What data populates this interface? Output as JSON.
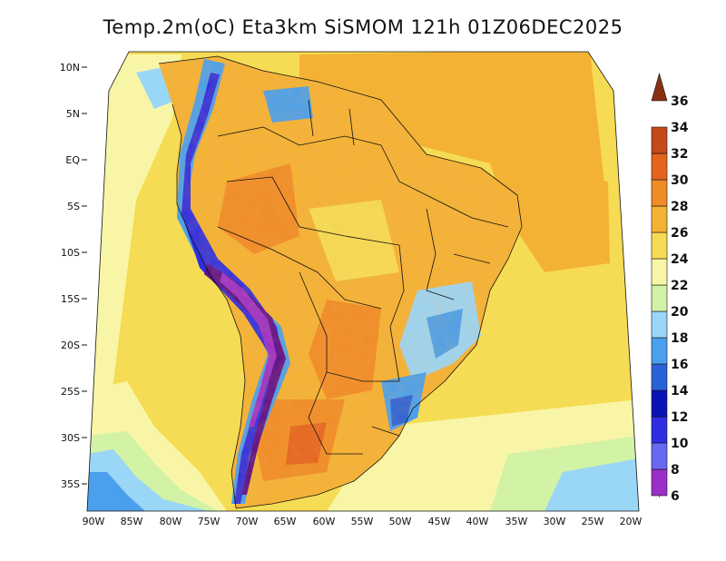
{
  "title": "Temp.2m(oC) Eta3km SiSMOM 121h 01Z06DEC2025",
  "map": {
    "variable": "2 m temperature",
    "region": "South America"
  },
  "lat_ticks": [
    "10N",
    "5N",
    "EQ",
    "5S",
    "10S",
    "15S",
    "20S",
    "25S",
    "30S",
    "35S"
  ],
  "lon_ticks": [
    "90W",
    "85W",
    "80W",
    "75W",
    "70W",
    "65W",
    "60W",
    "55W",
    "50W",
    "45W",
    "40W",
    "35W",
    "30W",
    "25W",
    "20W"
  ],
  "colorbar": {
    "labels": [
      "6",
      "8",
      "10",
      "12",
      "14",
      "16",
      "18",
      "20",
      "22",
      "24",
      "26",
      "28",
      "30",
      "32",
      "34",
      "36"
    ],
    "colors": [
      "#5c0f8a",
      "#9a2fc8",
      "#6868f2",
      "#2e2ee0",
      "#0a14b4",
      "#2a62d8",
      "#4aa0ec",
      "#9ad6f6",
      "#d2f2a6",
      "#f8f6a6",
      "#f6dc54",
      "#f4b234",
      "#f08c26",
      "#e4641e",
      "#c44a1a",
      "#8a3012"
    ]
  }
}
